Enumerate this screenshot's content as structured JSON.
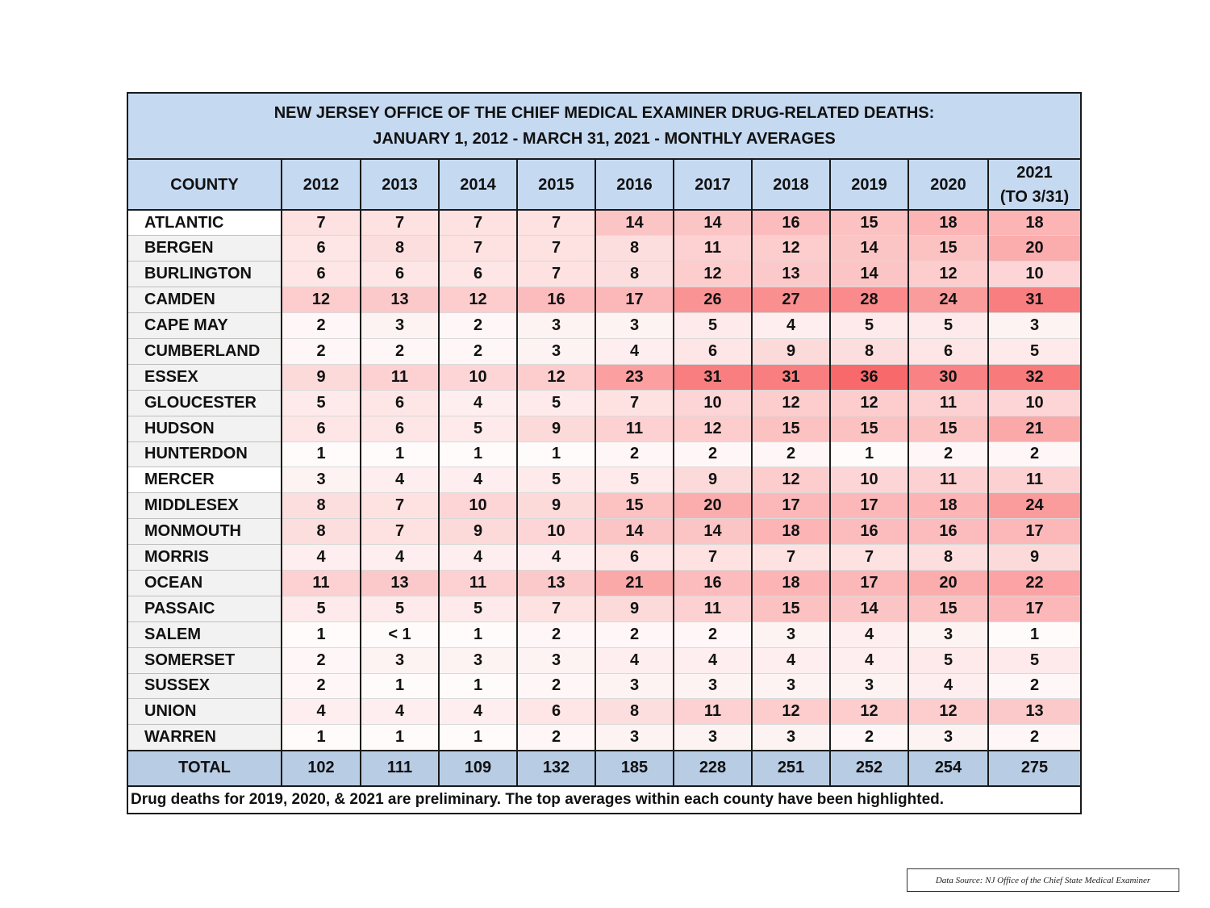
{
  "chart_data": {
    "type": "table",
    "title": "NEW JERSEY OFFICE OF THE CHIEF MEDICAL EXAMINER DRUG-RELATED DEATHS:",
    "subtitle": "JANUARY 1, 2012 - MARCH 31, 2021 - MONTHLY AVERAGES",
    "header_label": "COUNTY",
    "columns": [
      {
        "line1": "2012",
        "line2": ""
      },
      {
        "line1": "2013",
        "line2": ""
      },
      {
        "line1": "2014",
        "line2": ""
      },
      {
        "line1": "2015",
        "line2": ""
      },
      {
        "line1": "2016",
        "line2": ""
      },
      {
        "line1": "2017",
        "line2": ""
      },
      {
        "line1": "2018",
        "line2": ""
      },
      {
        "line1": "2019",
        "line2": ""
      },
      {
        "line1": "2020",
        "line2": ""
      },
      {
        "line1": "2021",
        "line2": "(TO 3/31)"
      }
    ],
    "rows": [
      {
        "county": "ATLANTIC",
        "values": [
          "7",
          "7",
          "7",
          "7",
          "14",
          "14",
          "16",
          "15",
          "18",
          "18"
        ]
      },
      {
        "county": "BERGEN",
        "values": [
          "6",
          "8",
          "7",
          "7",
          "8",
          "11",
          "12",
          "14",
          "15",
          "20"
        ]
      },
      {
        "county": "BURLINGTON",
        "values": [
          "6",
          "6",
          "6",
          "7",
          "8",
          "12",
          "13",
          "14",
          "12",
          "10"
        ]
      },
      {
        "county": "CAMDEN",
        "values": [
          "12",
          "13",
          "12",
          "16",
          "17",
          "26",
          "27",
          "28",
          "24",
          "31"
        ]
      },
      {
        "county": "CAPE MAY",
        "values": [
          "2",
          "3",
          "2",
          "3",
          "3",
          "5",
          "4",
          "5",
          "5",
          "3"
        ]
      },
      {
        "county": "CUMBERLAND",
        "values": [
          "2",
          "2",
          "2",
          "3",
          "4",
          "6",
          "9",
          "8",
          "6",
          "5"
        ]
      },
      {
        "county": "ESSEX",
        "values": [
          "9",
          "11",
          "10",
          "12",
          "23",
          "31",
          "31",
          "36",
          "30",
          "32"
        ]
      },
      {
        "county": "GLOUCESTER",
        "values": [
          "5",
          "6",
          "4",
          "5",
          "7",
          "10",
          "12",
          "12",
          "11",
          "10"
        ]
      },
      {
        "county": "HUDSON",
        "values": [
          "6",
          "6",
          "5",
          "9",
          "11",
          "12",
          "15",
          "15",
          "15",
          "21"
        ]
      },
      {
        "county": "HUNTERDON",
        "values": [
          "1",
          "1",
          "1",
          "1",
          "2",
          "2",
          "2",
          "1",
          "2",
          "2"
        ]
      },
      {
        "county": "MERCER",
        "values": [
          "3",
          "4",
          "4",
          "5",
          "5",
          "9",
          "12",
          "10",
          "11",
          "11"
        ]
      },
      {
        "county": "MIDDLESEX",
        "values": [
          "8",
          "7",
          "10",
          "9",
          "15",
          "20",
          "17",
          "17",
          "18",
          "24"
        ]
      },
      {
        "county": "MONMOUTH",
        "values": [
          "8",
          "7",
          "9",
          "10",
          "14",
          "14",
          "18",
          "16",
          "16",
          "17"
        ]
      },
      {
        "county": "MORRIS",
        "values": [
          "4",
          "4",
          "4",
          "4",
          "6",
          "7",
          "7",
          "7",
          "8",
          "9"
        ]
      },
      {
        "county": "OCEAN",
        "values": [
          "11",
          "13",
          "11",
          "13",
          "21",
          "16",
          "18",
          "17",
          "20",
          "22"
        ]
      },
      {
        "county": "PASSAIC",
        "values": [
          "5",
          "5",
          "5",
          "7",
          "9",
          "11",
          "15",
          "14",
          "15",
          "17"
        ]
      },
      {
        "county": "SALEM",
        "values": [
          "1",
          "< 1",
          "1",
          "2",
          "2",
          "2",
          "3",
          "4",
          "3",
          "1"
        ]
      },
      {
        "county": "SOMERSET",
        "values": [
          "2",
          "3",
          "3",
          "3",
          "4",
          "4",
          "4",
          "4",
          "5",
          "5"
        ]
      },
      {
        "county": "SUSSEX",
        "values": [
          "2",
          "1",
          "1",
          "2",
          "3",
          "3",
          "3",
          "3",
          "4",
          "2"
        ]
      },
      {
        "county": "UNION",
        "values": [
          "4",
          "4",
          "4",
          "6",
          "8",
          "11",
          "12",
          "12",
          "12",
          "13"
        ]
      },
      {
        "county": "WARREN",
        "values": [
          "1",
          "1",
          "1",
          "2",
          "3",
          "3",
          "3",
          "2",
          "3",
          "2"
        ]
      }
    ],
    "total": {
      "label": "TOTAL",
      "values": [
        "102",
        "111",
        "109",
        "132",
        "185",
        "228",
        "251",
        "252",
        "254",
        "275"
      ]
    },
    "footnote": "Drug deaths for 2019, 2020, & 2021 are preliminary. The top averages within each county have been highlighted.",
    "heat_scale": {
      "low": "#ffffff",
      "high": "#f8696b",
      "max_value": 36
    },
    "header_color": "#c5d9f1",
    "total_color": "#b8cce4"
  },
  "source_note": "Data Source: NJ Office of the Chief State Medical Examiner"
}
